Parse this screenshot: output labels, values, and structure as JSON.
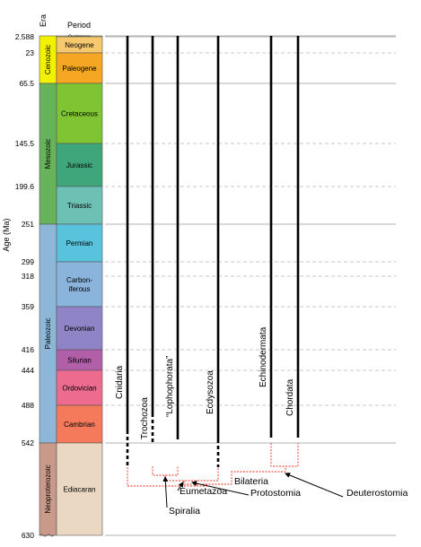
{
  "headers": {
    "era": "Era",
    "period": "Period",
    "axis": "Age (Ma)"
  },
  "ages": [
    {
      "label": "2.588",
      "value": 2.588
    },
    {
      "label": "23",
      "value": 23
    },
    {
      "label": "65.5",
      "value": 65.5
    },
    {
      "label": "145.5",
      "value": 145.5
    },
    {
      "label": "199.6",
      "value": 199.6
    },
    {
      "label": "251",
      "value": 251
    },
    {
      "label": "299",
      "value": 299
    },
    {
      "label": "318",
      "value": 318
    },
    {
      "label": "359",
      "value": 359
    },
    {
      "label": "416",
      "value": 416
    },
    {
      "label": "444",
      "value": 444
    },
    {
      "label": "488",
      "value": 488
    },
    {
      "label": "542",
      "value": 542
    },
    {
      "label": "630",
      "value": 630
    }
  ],
  "eras": [
    {
      "name": "Cenozoic",
      "from": 0,
      "to": 65.5,
      "color": "#f2f200"
    },
    {
      "name": "Mesozoic",
      "from": 65.5,
      "to": 251,
      "color": "#67b35b"
    },
    {
      "name": "Paleozoic",
      "from": 251,
      "to": 542,
      "color": "#8db7d8"
    },
    {
      "name": "Neoproterozoic",
      "from": 542,
      "to": 630,
      "color": "#c99a8a"
    }
  ],
  "periods": [
    {
      "name": "Quaternary",
      "from": 0,
      "to": 2.588,
      "color": "#f9f97f"
    },
    {
      "name": "Neogene",
      "from": 2.588,
      "to": 23,
      "color": "#f7c96f"
    },
    {
      "name": "Paleogene",
      "from": 23,
      "to": 65.5,
      "color": "#f5a623"
    },
    {
      "name": "Cretaceous",
      "from": 65.5,
      "to": 145.5,
      "color": "#7fc433"
    },
    {
      "name": "Jurassic",
      "from": 145.5,
      "to": 199.6,
      "color": "#3ea67a"
    },
    {
      "name": "Triassic",
      "from": 199.6,
      "to": 251,
      "color": "#6dc1b4"
    },
    {
      "name": "Permian",
      "from": 251,
      "to": 299,
      "color": "#59c3de"
    },
    {
      "name": "Carbon-\niferous",
      "from": 299,
      "to": 359,
      "color": "#8ab4dc"
    },
    {
      "name": "Devonian",
      "from": 359,
      "to": 416,
      "color": "#8f84c5"
    },
    {
      "name": "Silurian",
      "from": 416,
      "to": 444,
      "color": "#b15fa8"
    },
    {
      "name": "Ordovician",
      "from": 444,
      "to": 488,
      "color": "#ec6b8f"
    },
    {
      "name": "Cambrian",
      "from": 488,
      "to": 542,
      "color": "#f57a5b"
    },
    {
      "name": "Ediacaran",
      "from": 542,
      "to": 630,
      "color": "#ead8c3"
    }
  ],
  "taxa": [
    {
      "name": "Cnidaria",
      "top": 0,
      "solid_to": 542,
      "dashed_to": 575
    },
    {
      "name": "Trochozoa",
      "top": 0,
      "solid_to": 542,
      "dashed_to": 542
    },
    {
      "name": "“Lophophorata”",
      "top": 0,
      "solid_to": 542,
      "dashed_to": 542
    },
    {
      "name": "Ecdysozoa",
      "top": 0,
      "solid_to": 542,
      "dashed_to": 575
    },
    {
      "name": "Echinodermata",
      "top": 0,
      "solid_to": 542,
      "dashed_to": 542
    },
    {
      "name": "Chordata",
      "top": 0,
      "solid_to": 542,
      "dashed_to": 542
    }
  ],
  "clades": [
    {
      "name": "Eumetazoa"
    },
    {
      "name": "Spiralia"
    },
    {
      "name": "Protostomia"
    },
    {
      "name": "Bilateria"
    },
    {
      "name": "Deuterostomia"
    }
  ],
  "colors": {
    "branch": "#e8321f",
    "lineage": "#000000",
    "solid_grid": "#9a9a9a",
    "dashed_grid": "#b5b5b5"
  }
}
